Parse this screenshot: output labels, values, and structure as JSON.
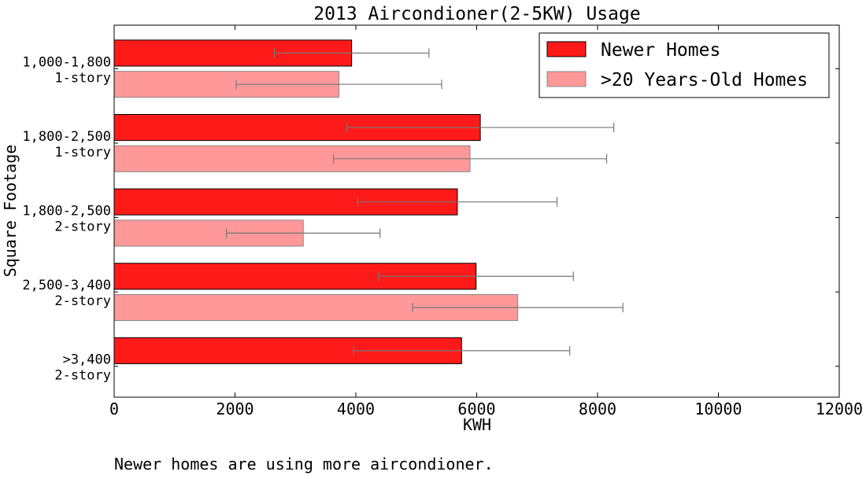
{
  "chart_data": {
    "type": "bar",
    "orientation": "horizontal",
    "title": "2013 Aircondioner(2-5KW) Usage",
    "xlabel": "KWH",
    "ylabel": "Square Footage",
    "xlim": [
      0,
      12000
    ],
    "xticks": [
      "0",
      "2000",
      "4000",
      "6000",
      "8000",
      "10000",
      "12000"
    ],
    "grid": false,
    "legend_position": "top-right",
    "categories": [
      [
        "1,000-1,800",
        "1-story"
      ],
      [
        "1,800-2,500",
        "1-story"
      ],
      [
        "1,800-2,500",
        "2-story"
      ],
      [
        "2,500-3,400",
        "2-story"
      ],
      [
        ">3,400",
        "2-story"
      ]
    ],
    "series": [
      {
        "name": "Newer Homes",
        "color": "#ff1a1a",
        "values": [
          3930,
          6060,
          5680,
          5990,
          5750
        ],
        "error": [
          1280,
          2210,
          1650,
          1610,
          1790
        ]
      },
      {
        "name": ">20 Years-Old Homes",
        "color": "#ff9999",
        "values": [
          3720,
          5890,
          3130,
          6680,
          null
        ],
        "error": [
          1700,
          2260,
          1270,
          1740,
          null
        ]
      }
    ],
    "caption": "Newer homes are using more aircondioner."
  }
}
